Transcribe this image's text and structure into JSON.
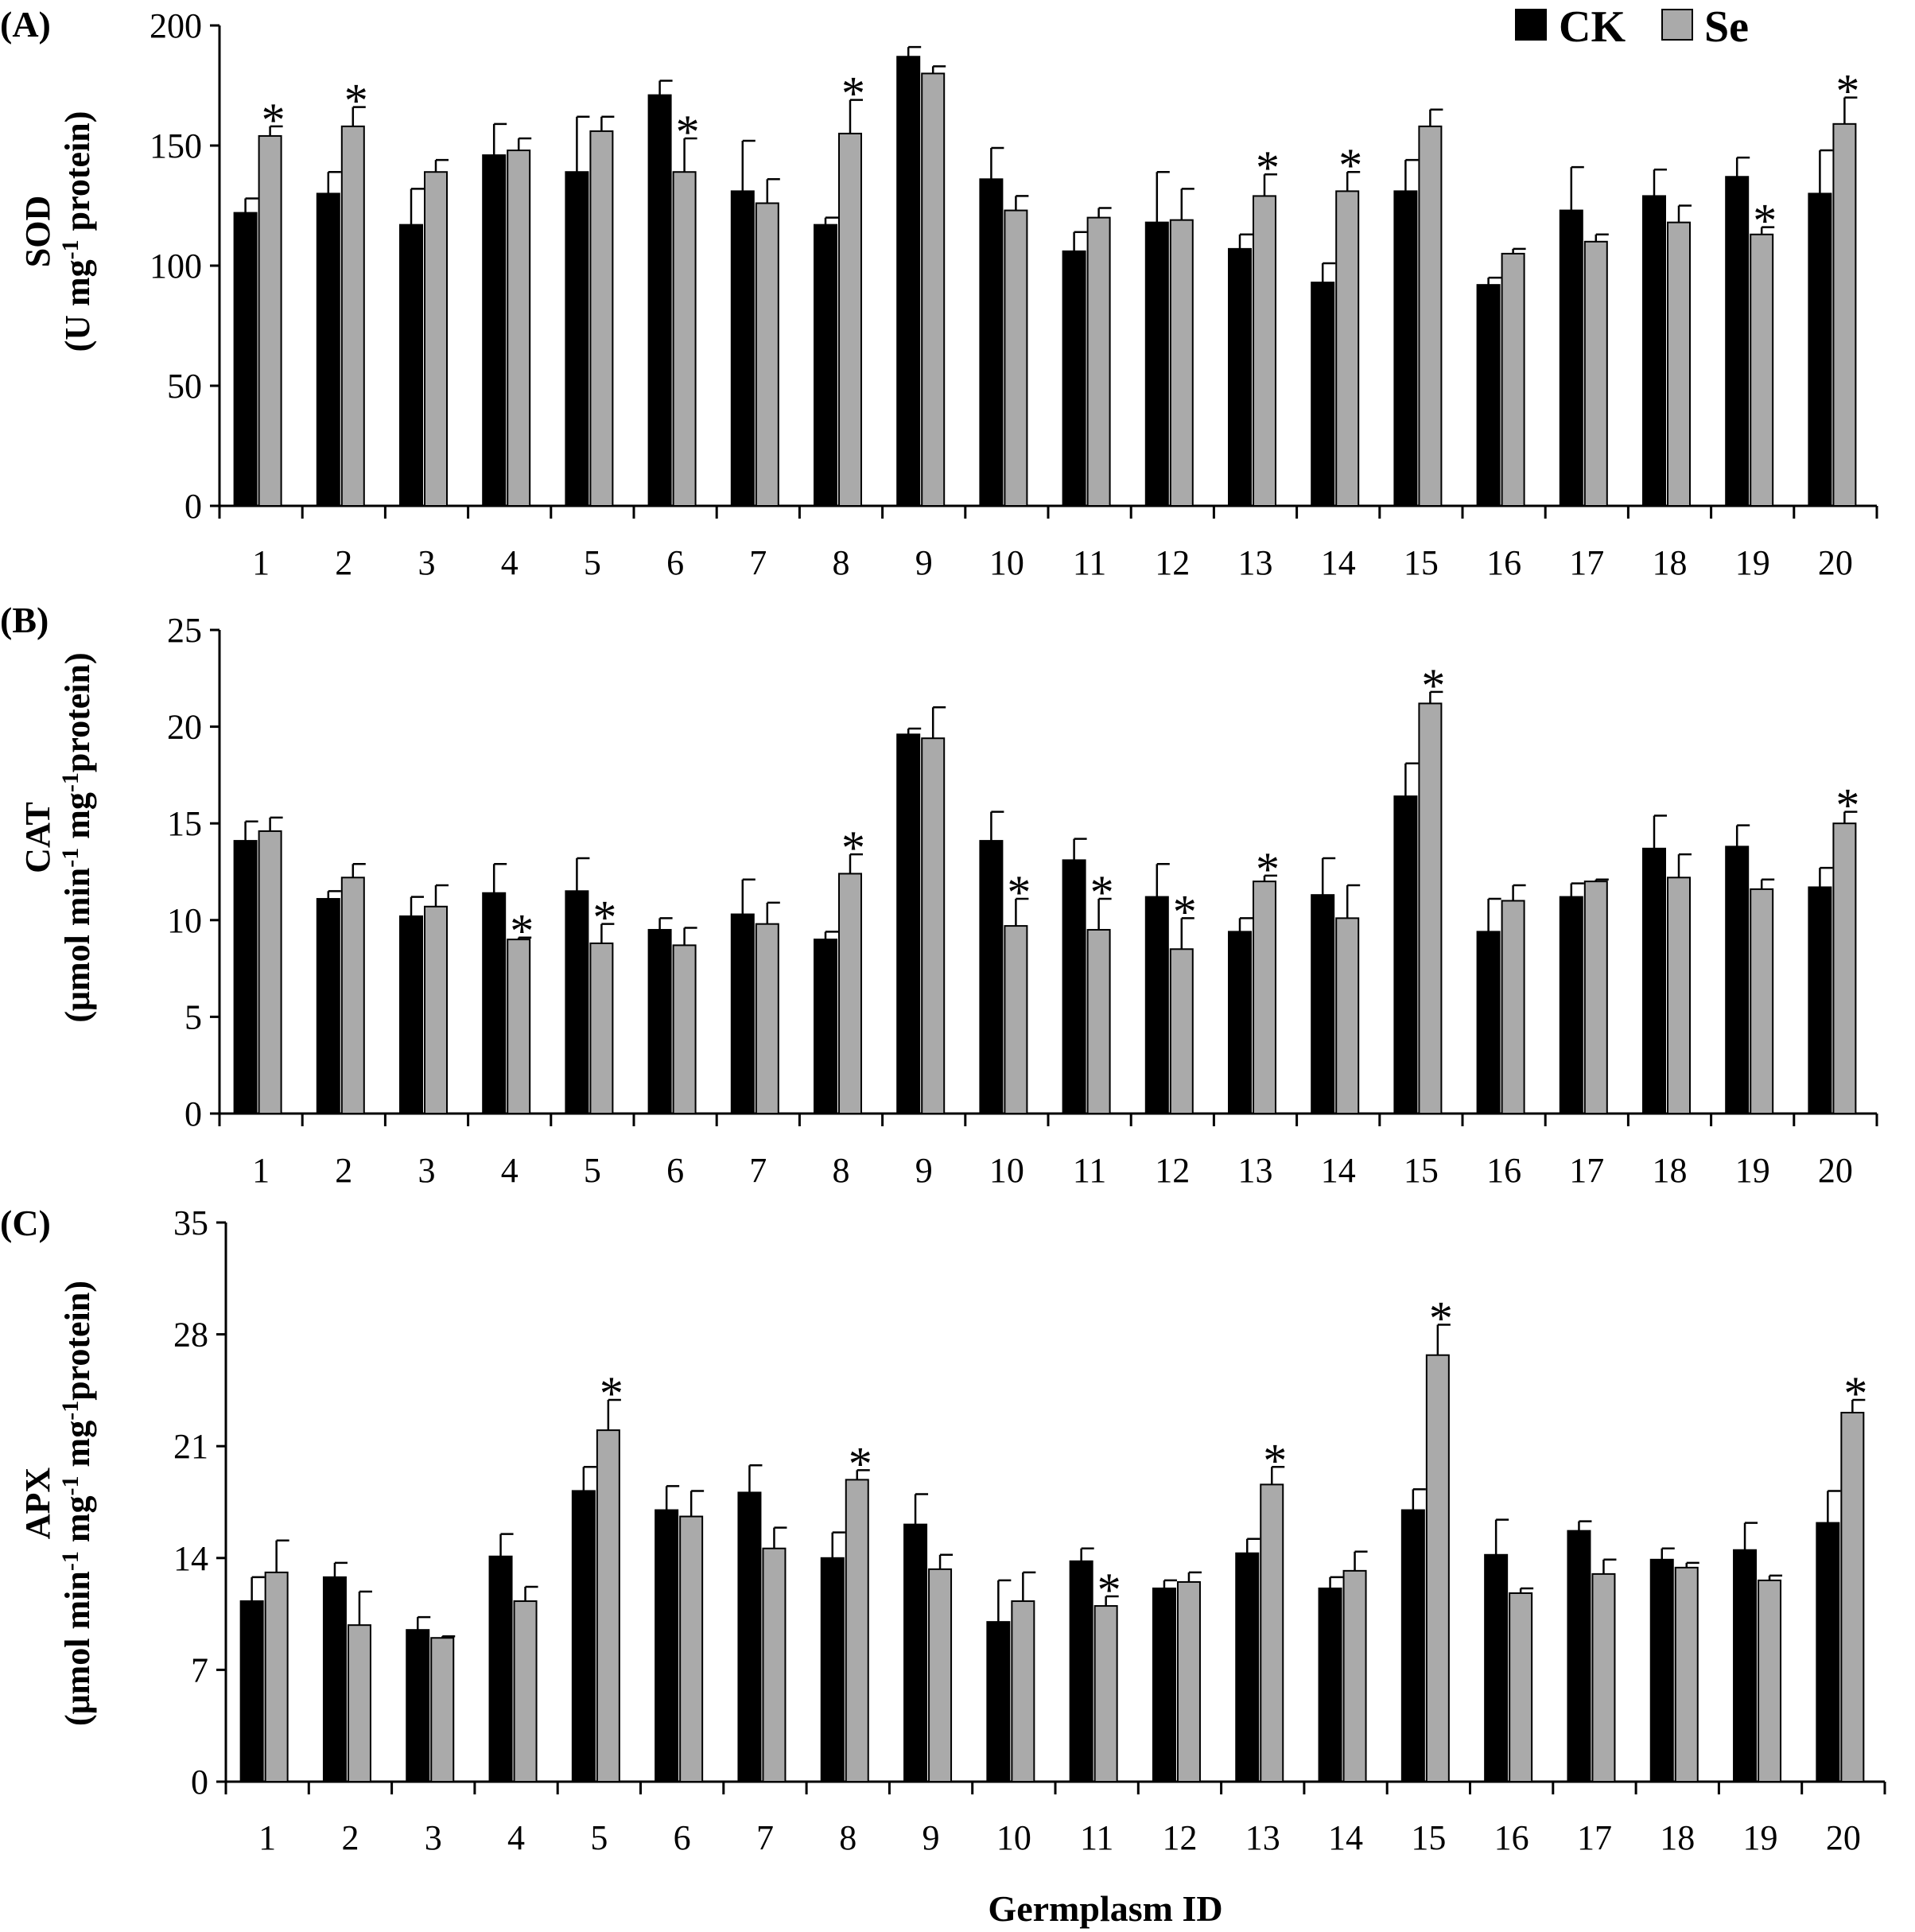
{
  "legend": {
    "ck_label": "CK",
    "se_label": "Se"
  },
  "colors": {
    "ck": "#000000",
    "se": "#aaaaaa",
    "axis": "#000000"
  },
  "x_axis_title": "Germplasm ID",
  "chart_data": [
    {
      "type": "bar",
      "panel": "(A)",
      "ylabel_line1": "SOD",
      "ylabel_line2_parts": [
        "(U mg",
        "-1",
        " protein)"
      ],
      "ylim": [
        0,
        200
      ],
      "yticks": [
        0,
        50,
        100,
        150,
        200
      ],
      "categories": [
        "1",
        "2",
        "3",
        "4",
        "5",
        "6",
        "7",
        "8",
        "9",
        "10",
        "11",
        "12",
        "13",
        "14",
        "15",
        "16",
        "17",
        "18",
        "19",
        "20"
      ],
      "series": [
        {
          "name": "CK",
          "values": [
            122,
            130,
            117,
            146,
            139,
            171,
            131,
            117,
            187,
            136,
            106,
            118,
            107,
            93,
            131,
            92,
            123,
            129,
            137,
            130
          ],
          "errors": [
            6,
            9,
            15,
            13,
            23,
            6,
            21,
            3,
            4,
            13,
            8,
            21,
            6,
            8,
            13,
            3,
            18,
            11,
            8,
            18
          ]
        },
        {
          "name": "Se",
          "values": [
            154,
            158,
            139,
            148,
            156,
            139,
            126,
            155,
            180,
            123,
            120,
            119,
            129,
            131,
            158,
            105,
            110,
            118,
            113,
            159
          ],
          "errors": [
            4,
            8,
            5,
            5,
            6,
            14,
            10,
            14,
            3,
            6,
            4,
            13,
            9,
            8,
            7,
            2,
            3,
            7,
            3,
            11
          ]
        }
      ],
      "significant_se": [
        1,
        2,
        6,
        8,
        13,
        14,
        19,
        20
      ]
    },
    {
      "type": "bar",
      "panel": "(B)",
      "ylabel_line1": "CAT",
      "ylabel_line2_parts": [
        "(μmol min",
        "-1",
        " mg",
        "-1",
        "protein)"
      ],
      "ylim": [
        0,
        25
      ],
      "yticks": [
        0,
        5,
        10,
        15,
        20,
        25
      ],
      "categories": [
        "1",
        "2",
        "3",
        "4",
        "5",
        "6",
        "7",
        "8",
        "9",
        "10",
        "11",
        "12",
        "13",
        "14",
        "15",
        "16",
        "17",
        "18",
        "19",
        "20"
      ],
      "series": [
        {
          "name": "CK",
          "values": [
            14.1,
            11.1,
            10.2,
            11.4,
            11.5,
            9.5,
            10.3,
            9.0,
            19.6,
            14.1,
            13.1,
            11.2,
            9.4,
            11.3,
            16.4,
            9.4,
            11.2,
            13.7,
            13.8,
            11.7
          ],
          "errors": [
            1.0,
            0.4,
            1.0,
            1.5,
            1.7,
            0.6,
            1.8,
            0.4,
            0.3,
            1.5,
            1.1,
            1.7,
            0.7,
            1.9,
            1.7,
            1.7,
            0.7,
            1.7,
            1.1,
            1.0
          ]
        },
        {
          "name": "Se",
          "values": [
            14.6,
            12.2,
            10.7,
            9.0,
            8.8,
            8.7,
            9.8,
            12.4,
            19.4,
            9.7,
            9.5,
            8.5,
            12.0,
            10.1,
            21.2,
            11.0,
            12.0,
            12.2,
            11.6,
            15.0
          ],
          "errors": [
            0.7,
            0.7,
            1.1,
            0.1,
            1.0,
            0.9,
            1.1,
            1.0,
            1.6,
            1.4,
            1.6,
            1.6,
            0.3,
            1.7,
            0.6,
            0.8,
            0.1,
            1.2,
            0.5,
            0.6
          ]
        }
      ],
      "significant_se": [
        4,
        5,
        8,
        10,
        11,
        12,
        13,
        15,
        20
      ]
    },
    {
      "type": "bar",
      "panel": "(C)",
      "ylabel_line1": "APX",
      "ylabel_line2_parts": [
        "(μmol min",
        "-1",
        " mg",
        "-1",
        " mg",
        "-1",
        "protein)"
      ],
      "ylim": [
        0,
        35
      ],
      "yticks": [
        0,
        7,
        14,
        21,
        28,
        35
      ],
      "categories": [
        "1",
        "2",
        "3",
        "4",
        "5",
        "6",
        "7",
        "8",
        "9",
        "10",
        "11",
        "12",
        "13",
        "14",
        "15",
        "16",
        "17",
        "18",
        "19",
        "20"
      ],
      "series": [
        {
          "name": "CK",
          "values": [
            11.3,
            12.8,
            9.5,
            14.1,
            18.2,
            17.0,
            18.1,
            14.0,
            16.1,
            10.0,
            13.8,
            12.1,
            14.3,
            12.1,
            17.0,
            14.2,
            15.7,
            13.9,
            14.5,
            16.2
          ],
          "errors": [
            1.5,
            0.9,
            0.8,
            1.4,
            1.5,
            1.5,
            1.7,
            1.6,
            1.9,
            2.6,
            0.8,
            0.5,
            0.9,
            0.7,
            1.3,
            2.2,
            0.6,
            0.7,
            1.7,
            2.0
          ]
        },
        {
          "name": "Se",
          "values": [
            13.1,
            9.8,
            9.0,
            11.3,
            22.0,
            16.6,
            14.6,
            18.9,
            13.3,
            11.3,
            11.0,
            12.5,
            18.6,
            13.2,
            26.7,
            11.8,
            13.0,
            13.4,
            12.6,
            23.1
          ],
          "errors": [
            2.0,
            2.1,
            0.1,
            0.9,
            1.9,
            1.6,
            1.3,
            0.6,
            0.9,
            1.8,
            0.6,
            0.6,
            1.1,
            1.2,
            1.9,
            0.3,
            0.9,
            0.3,
            0.3,
            0.8
          ]
        }
      ],
      "significant_se": [
        5,
        8,
        11,
        13,
        15,
        20
      ]
    }
  ]
}
